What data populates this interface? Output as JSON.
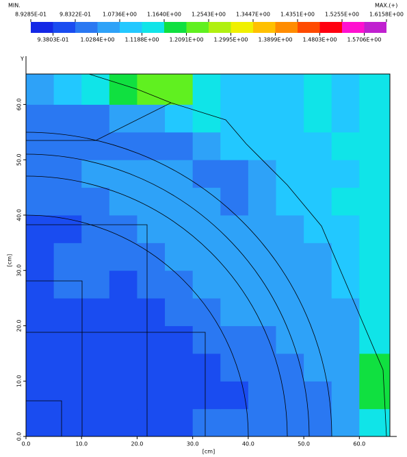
{
  "chart_data": {
    "type": "heatmap",
    "colorbar": {
      "min_label": "MIN.",
      "max_label": "MAX.(+)",
      "edges": [
        {
          "value": 0.89285,
          "label": "8.9285E-01"
        },
        {
          "value": 0.93803,
          "label": "9.3803E-01"
        },
        {
          "value": 0.98322,
          "label": "9.8322E-01"
        },
        {
          "value": 1.0284,
          "label": "1.0284E+00"
        },
        {
          "value": 1.0736,
          "label": "1.0736E+00"
        },
        {
          "value": 1.1188,
          "label": "1.1188E+00"
        },
        {
          "value": 1.164,
          "label": "1.1640E+00"
        },
        {
          "value": 1.2091,
          "label": "1.2091E+00"
        },
        {
          "value": 1.2543,
          "label": "1.2543E+00"
        },
        {
          "value": 1.2995,
          "label": "1.2995E+00"
        },
        {
          "value": 1.3447,
          "label": "1.3447E+00"
        },
        {
          "value": 1.3899,
          "label": "1.3899E+00"
        },
        {
          "value": 1.4351,
          "label": "1.4351E+00"
        },
        {
          "value": 1.4803,
          "label": "1.4803E+00"
        },
        {
          "value": 1.5255,
          "label": "1.5255E+00"
        },
        {
          "value": 1.5706,
          "label": "1.5706E+00"
        },
        {
          "value": 1.6158,
          "label": "1.6158E+00"
        }
      ],
      "colors": [
        "#1428e6",
        "#1a4cf0",
        "#2a78f2",
        "#2ea2f8",
        "#22c8ff",
        "#10e4e8",
        "#10e040",
        "#60f020",
        "#b0f010",
        "#f0f000",
        "#ffc000",
        "#ff8c00",
        "#ff4a00",
        "#ff0010",
        "#ff10d0",
        "#c020d0"
      ]
    },
    "x_label": "[cm]",
    "y_label": "[cm]",
    "y_axis_name": "Y",
    "xlim": [
      0,
      65.5
    ],
    "ylim": [
      0,
      65.5
    ],
    "xticks": [
      {
        "value": 0,
        "label": "0.0"
      },
      {
        "value": 10,
        "label": "10.0"
      },
      {
        "value": 20,
        "label": "20.0"
      },
      {
        "value": 30,
        "label": "30.0"
      },
      {
        "value": 40,
        "label": "40.0"
      },
      {
        "value": 50,
        "label": "50.0"
      },
      {
        "value": 60,
        "label": "60.0"
      }
    ],
    "yticks": [
      {
        "value": 0,
        "label": "0.0"
      },
      {
        "value": 10,
        "label": "10.0"
      },
      {
        "value": 20,
        "label": "20.0"
      },
      {
        "value": 30,
        "label": "30.0"
      },
      {
        "value": 40,
        "label": "40.0"
      },
      {
        "value": 50,
        "label": "50.0"
      },
      {
        "value": 60,
        "label": "60.0"
      }
    ],
    "x_edges": [
      0,
      5,
      10,
      15,
      20,
      25,
      30,
      35,
      40,
      45,
      50,
      55,
      60,
      65.5
    ],
    "y_edges": [
      0,
      5,
      10,
      15,
      20,
      25,
      30,
      35,
      40,
      45,
      50,
      55,
      60,
      65.5
    ],
    "z": [
      [
        0.98,
        0.97,
        0.96,
        0.96,
        0.97,
        0.98,
        0.99,
        1.0,
        1.0,
        1.0,
        1.02,
        1.03,
        1.15
      ],
      [
        0.97,
        0.96,
        0.96,
        0.95,
        0.96,
        0.97,
        0.98,
        0.98,
        0.99,
        1.0,
        1.02,
        1.03,
        1.2
      ],
      [
        0.96,
        0.97,
        0.96,
        0.96,
        0.96,
        0.97,
        0.98,
        1.0,
        1.0,
        1.02,
        1.03,
        1.04,
        1.2
      ],
      [
        0.96,
        0.97,
        0.97,
        0.96,
        0.96,
        0.98,
        1.0,
        1.0,
        1.02,
        1.03,
        1.03,
        1.04,
        1.15
      ],
      [
        0.97,
        0.98,
        0.98,
        0.97,
        0.97,
        1.0,
        1.02,
        1.04,
        1.04,
        1.04,
        1.04,
        1.06,
        1.15
      ],
      [
        0.98,
        1.02,
        1.0,
        0.98,
        1.0,
        1.02,
        1.03,
        1.04,
        1.06,
        1.05,
        1.04,
        1.1,
        1.15
      ],
      [
        0.98,
        1.02,
        1.0,
        1.0,
        1.02,
        1.04,
        1.03,
        1.05,
        1.06,
        1.05,
        1.07,
        1.1,
        1.12
      ],
      [
        0.98,
        0.98,
        1.0,
        1.02,
        1.03,
        1.04,
        1.05,
        1.06,
        1.04,
        1.05,
        1.08,
        1.1,
        1.12
      ],
      [
        1.0,
        1.0,
        1.0,
        1.03,
        1.05,
        1.05,
        1.04,
        1.02,
        1.03,
        1.08,
        1.08,
        1.12,
        1.12
      ],
      [
        1.02,
        1.02,
        1.03,
        1.03,
        1.04,
        1.03,
        1.02,
        1.02,
        1.05,
        1.1,
        1.08,
        1.1,
        1.12
      ],
      [
        1.0,
        1.0,
        1.0,
        1.0,
        1.0,
        1.02,
        1.03,
        1.08,
        1.1,
        1.1,
        1.08,
        1.12,
        1.15
      ],
      [
        1.0,
        1.0,
        1.02,
        1.03,
        1.05,
        1.08,
        1.12,
        1.1,
        1.08,
        1.1,
        1.12,
        1.1,
        1.12
      ],
      [
        1.05,
        1.1,
        1.15,
        1.2,
        1.25,
        1.22,
        1.15,
        1.1,
        1.08,
        1.1,
        1.12,
        1.1,
        1.12
      ]
    ]
  }
}
